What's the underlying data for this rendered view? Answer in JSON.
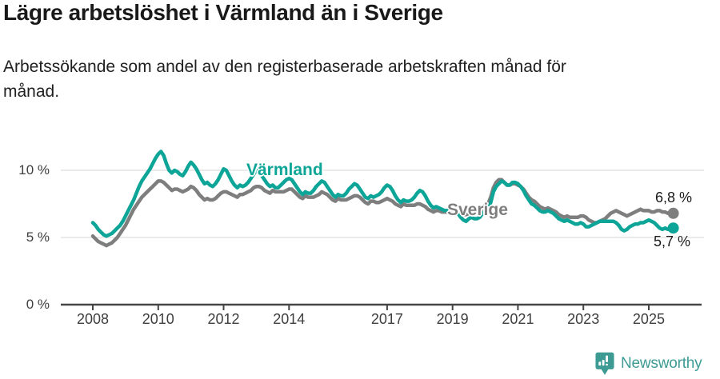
{
  "header": {
    "title": "Lägre arbetslöshet i Värmland än i Sverige",
    "subtitle": "Arbetssökande som andel av den registerbaserade arbetskraften månad för\nmånad."
  },
  "footer": {
    "brand": "Newsworthy",
    "brand_color": "#3d9b94"
  },
  "chart_data": {
    "type": "line",
    "title": "Lägre arbetslöshet i Värmland än i Sverige",
    "x_unit": "month",
    "x_start": "2008-01",
    "x_end": "2025-10",
    "ylabel": "Arbetssökande som andel av den registerbaserade arbetskraften",
    "ylim": [
      0,
      12
    ],
    "grid": true,
    "grid_values": [
      5,
      10
    ],
    "legend_position": "inline-labels",
    "y_ticks": [
      {
        "value": 0,
        "label": "0 %"
      },
      {
        "value": 5,
        "label": "5 %"
      },
      {
        "value": 10,
        "label": "10 %"
      }
    ],
    "x_ticks": [
      {
        "year": 2008,
        "label": "2008"
      },
      {
        "year": 2010,
        "label": "2010"
      },
      {
        "year": 2012,
        "label": "2012"
      },
      {
        "year": 2014,
        "label": "2014"
      },
      {
        "year": 2017,
        "label": "2017"
      },
      {
        "year": 2019,
        "label": "2019"
      },
      {
        "year": 2021,
        "label": "2021"
      },
      {
        "year": 2023,
        "label": "2023"
      },
      {
        "year": 2025,
        "label": "2025"
      }
    ],
    "colors": {
      "grid": "#e4e4e4",
      "axis": "#454545",
      "varmland": "#0ca597",
      "sverige": "#7e7e7e"
    },
    "series": [
      {
        "key": "varmland",
        "name": "Värmland",
        "color": "#0ca597",
        "end_label": "5,7 %",
        "end_value": 5.7,
        "values": [
          6.1,
          5.9,
          5.6,
          5.4,
          5.2,
          5.1,
          5.2,
          5.3,
          5.5,
          5.7,
          5.9,
          6.2,
          6.6,
          7.0,
          7.4,
          7.8,
          8.3,
          8.8,
          9.2,
          9.5,
          9.8,
          10.1,
          10.5,
          10.9,
          11.2,
          11.4,
          11.1,
          10.5,
          10.0,
          9.8,
          10.0,
          9.9,
          9.7,
          9.6,
          9.9,
          10.3,
          10.6,
          10.4,
          10.1,
          9.7,
          9.3,
          9.0,
          9.1,
          8.9,
          8.8,
          9.0,
          9.3,
          9.7,
          10.1,
          10.0,
          9.6,
          9.2,
          8.9,
          8.7,
          8.9,
          8.8,
          8.9,
          9.1,
          9.4,
          9.7,
          10.0,
          9.9,
          9.6,
          9.3,
          9.0,
          8.8,
          8.9,
          8.7,
          8.7,
          8.9,
          9.1,
          9.3,
          9.4,
          9.3,
          9.0,
          8.7,
          8.4,
          8.2,
          8.4,
          8.3,
          8.3,
          8.5,
          8.8,
          9.0,
          9.2,
          9.1,
          8.8,
          8.5,
          8.2,
          8.0,
          8.2,
          8.1,
          8.1,
          8.3,
          8.6,
          8.8,
          9.0,
          8.9,
          8.6,
          8.3,
          8.0,
          7.9,
          8.1,
          8.0,
          8.1,
          8.2,
          8.4,
          8.7,
          8.9,
          8.8,
          8.5,
          8.1,
          7.8,
          7.6,
          7.8,
          7.7,
          7.7,
          7.8,
          8.0,
          8.3,
          8.5,
          8.4,
          8.1,
          7.7,
          7.4,
          7.2,
          7.3,
          7.2,
          7.1,
          7.0,
          7.0,
          7.1,
          7.1,
          7.0,
          6.8,
          6.5,
          6.3,
          6.2,
          6.4,
          6.5,
          6.4,
          6.4,
          6.5,
          6.8,
          7.0,
          7.1,
          7.6,
          8.4,
          8.8,
          9.0,
          9.2,
          9.1,
          8.9,
          8.9,
          9.1,
          9.1,
          9.0,
          8.8,
          8.5,
          8.1,
          7.8,
          7.5,
          7.4,
          7.2,
          7.0,
          6.9,
          6.9,
          7.0,
          6.9,
          6.8,
          6.6,
          6.4,
          6.3,
          6.2,
          6.3,
          6.2,
          6.1,
          6.0,
          6.0,
          6.1,
          6.0,
          5.8,
          5.8,
          5.9,
          6.0,
          6.1,
          6.2,
          6.2,
          6.2,
          6.2,
          6.2,
          6.2,
          6.1,
          5.9,
          5.6,
          5.5,
          5.6,
          5.8,
          5.9,
          6.0,
          6.0,
          6.1,
          6.1,
          6.2,
          6.3,
          6.2,
          6.1,
          5.9,
          5.7,
          5.6,
          5.7,
          5.6,
          5.6,
          5.7
        ]
      },
      {
        "key": "sverige",
        "name": "Sverige",
        "color": "#7e7e7e",
        "end_label": "6,8 %",
        "end_value": 6.8,
        "values": [
          5.1,
          4.9,
          4.7,
          4.6,
          4.5,
          4.4,
          4.5,
          4.6,
          4.8,
          5.0,
          5.3,
          5.6,
          5.9,
          6.3,
          6.7,
          7.1,
          7.4,
          7.7,
          8.0,
          8.2,
          8.4,
          8.6,
          8.8,
          9.0,
          9.2,
          9.2,
          9.1,
          8.9,
          8.7,
          8.5,
          8.6,
          8.6,
          8.5,
          8.4,
          8.5,
          8.6,
          8.8,
          8.7,
          8.5,
          8.2,
          8.0,
          7.8,
          7.9,
          7.8,
          7.8,
          7.9,
          8.1,
          8.3,
          8.4,
          8.4,
          8.3,
          8.2,
          8.1,
          8.0,
          8.2,
          8.2,
          8.3,
          8.4,
          8.5,
          8.7,
          8.8,
          8.8,
          8.7,
          8.5,
          8.4,
          8.3,
          8.5,
          8.4,
          8.4,
          8.4,
          8.4,
          8.5,
          8.6,
          8.6,
          8.4,
          8.2,
          8.0,
          7.9,
          8.1,
          8.0,
          8.0,
          8.0,
          8.1,
          8.2,
          8.4,
          8.3,
          8.2,
          8.0,
          7.8,
          7.7,
          7.9,
          7.8,
          7.8,
          7.8,
          7.9,
          8.0,
          8.1,
          8.1,
          8.0,
          7.8,
          7.6,
          7.5,
          7.7,
          7.7,
          7.6,
          7.6,
          7.7,
          7.8,
          7.9,
          7.8,
          7.7,
          7.5,
          7.4,
          7.3,
          7.5,
          7.4,
          7.4,
          7.4,
          7.4,
          7.5,
          7.5,
          7.4,
          7.3,
          7.1,
          7.0,
          6.9,
          7.0,
          7.0,
          6.9,
          6.9,
          6.9,
          7.0,
          7.0,
          7.0,
          6.9,
          6.8,
          6.7,
          6.7,
          6.8,
          6.9,
          6.9,
          7.0,
          7.0,
          7.2,
          7.4,
          7.5,
          8.0,
          8.7,
          9.1,
          9.3,
          9.3,
          9.1,
          8.9,
          8.9,
          9.0,
          9.0,
          8.9,
          8.8,
          8.6,
          8.3,
          8.0,
          7.8,
          7.7,
          7.5,
          7.3,
          7.2,
          7.1,
          7.2,
          7.1,
          7.0,
          6.9,
          6.7,
          6.6,
          6.5,
          6.6,
          6.5,
          6.5,
          6.5,
          6.5,
          6.6,
          6.6,
          6.5,
          6.3,
          6.2,
          6.1,
          6.1,
          6.2,
          6.3,
          6.4,
          6.6,
          6.8,
          6.9,
          7.0,
          6.9,
          6.8,
          6.7,
          6.6,
          6.7,
          6.8,
          6.9,
          7.0,
          7.1,
          7.0,
          7.0,
          7.0,
          6.9,
          6.9,
          7.0,
          7.0,
          6.9,
          6.9,
          6.8,
          6.8,
          6.8
        ]
      }
    ]
  }
}
